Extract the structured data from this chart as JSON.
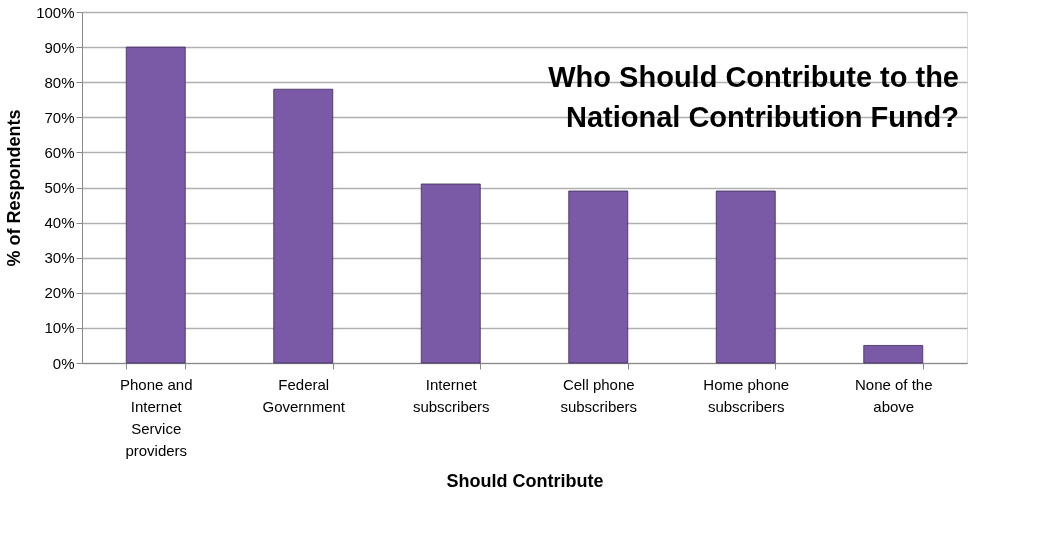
{
  "chart_data": {
    "type": "bar",
    "title": "Who Should Contribute to the\nNational Contribution Fund?",
    "xlabel": "Should Contribute",
    "ylabel": "% of Respondents",
    "categories": [
      "Phone and Internet Service providers",
      "Federal Government",
      "Internet subscribers",
      "Cell phone subscribers",
      "Home phone subscribers",
      "None of the above"
    ],
    "values": [
      90,
      78,
      51,
      49,
      49,
      5
    ],
    "color": "#7a5aa6",
    "ylim": [
      0,
      100
    ],
    "yticks": [
      {
        "value": 0,
        "label": "0%"
      },
      {
        "value": 10,
        "label": "10%"
      },
      {
        "value": 20,
        "label": "20%"
      },
      {
        "value": 30,
        "label": "30%"
      },
      {
        "value": 40,
        "label": "40%"
      },
      {
        "value": 50,
        "label": "50%"
      },
      {
        "value": 60,
        "label": "60%"
      },
      {
        "value": 70,
        "label": "70%"
      },
      {
        "value": 80,
        "label": "80%"
      },
      {
        "value": 90,
        "label": "90%"
      },
      {
        "value": 100,
        "label": "100%"
      }
    ],
    "grid": true
  }
}
